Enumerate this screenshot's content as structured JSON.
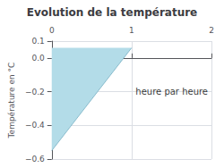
{
  "chart_data": {
    "type": "area",
    "title": "Evolution de la température",
    "ylabel": "Température en °C",
    "annotation": {
      "text": "heure par heure",
      "x": 1.05,
      "y": -0.2
    },
    "series": [
      {
        "type": "area",
        "color": "#b3dce8",
        "x": [
          0,
          0,
          1
        ],
        "values": [
          -0.55,
          0.06,
          0.06
        ]
      },
      {
        "type": "line",
        "color": "#88bbcc",
        "x": [
          0,
          1
        ],
        "values": [
          -0.55,
          0.06
        ]
      }
    ],
    "xlim": [
      0,
      2
    ],
    "ylim": [
      -0.6,
      0.1
    ],
    "xticks": [
      0,
      1,
      2
    ],
    "yticks": [
      {
        "value": -0.6,
        "label": "−0.6"
      },
      {
        "value": -0.4,
        "label": "−0.4"
      },
      {
        "value": -0.2,
        "label": "−0.2"
      },
      {
        "value": 0,
        "label": "0.0"
      },
      0.1
    ],
    "grid": true
  }
}
